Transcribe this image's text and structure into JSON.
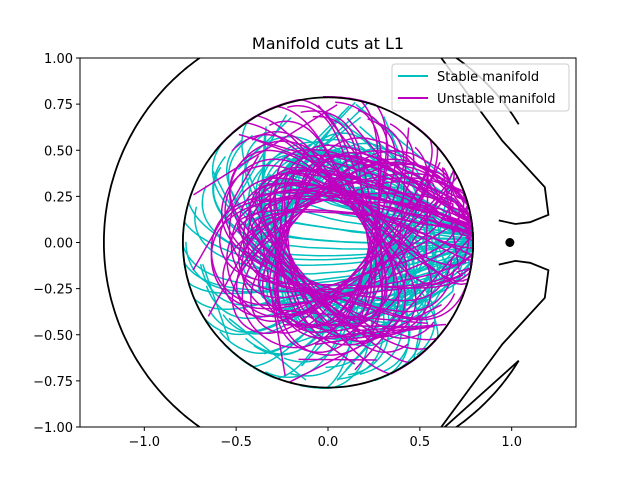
{
  "chart_data": {
    "type": "line",
    "title": "Manifold cuts at L1",
    "xlabel": "",
    "ylabel": "",
    "xlim": [
      -1.35,
      1.35
    ],
    "ylim": [
      -1.0,
      1.0
    ],
    "x_ticks": [
      "−1.0",
      "−0.5",
      "0.0",
      "0.5",
      "1.0"
    ],
    "x_tick_values": [
      -1.0,
      -0.5,
      0.0,
      0.5,
      1.0
    ],
    "y_ticks": [
      "1.00",
      "0.75",
      "0.50",
      "0.25",
      "0.00",
      "−0.25",
      "−0.50",
      "−0.75",
      "−1.00"
    ],
    "y_tick_values": [
      1.0,
      0.75,
      0.5,
      0.25,
      0.0,
      -0.25,
      -0.5,
      -0.75,
      -1.0
    ],
    "grid": false,
    "legend_position": "top-right",
    "colors": {
      "stable": "#00bfbf",
      "unstable": "#bf00bf",
      "boundary": "#000000"
    },
    "series": [
      {
        "name": "Stable manifold",
        "color": "#00bfbf",
        "orbit_count": 40
      },
      {
        "name": "Unstable manifold",
        "color": "#bf00bf",
        "orbit_count": 40
      }
    ],
    "inner_circle": {
      "center": [
        0.0,
        0.0
      ],
      "radius": 0.79
    },
    "outer_boundary": {
      "center_radius": 1.22,
      "neck_x": 1.0,
      "neck_halfwidth": 0.12
    },
    "l1_point": [
      0.99,
      0.0
    ]
  }
}
